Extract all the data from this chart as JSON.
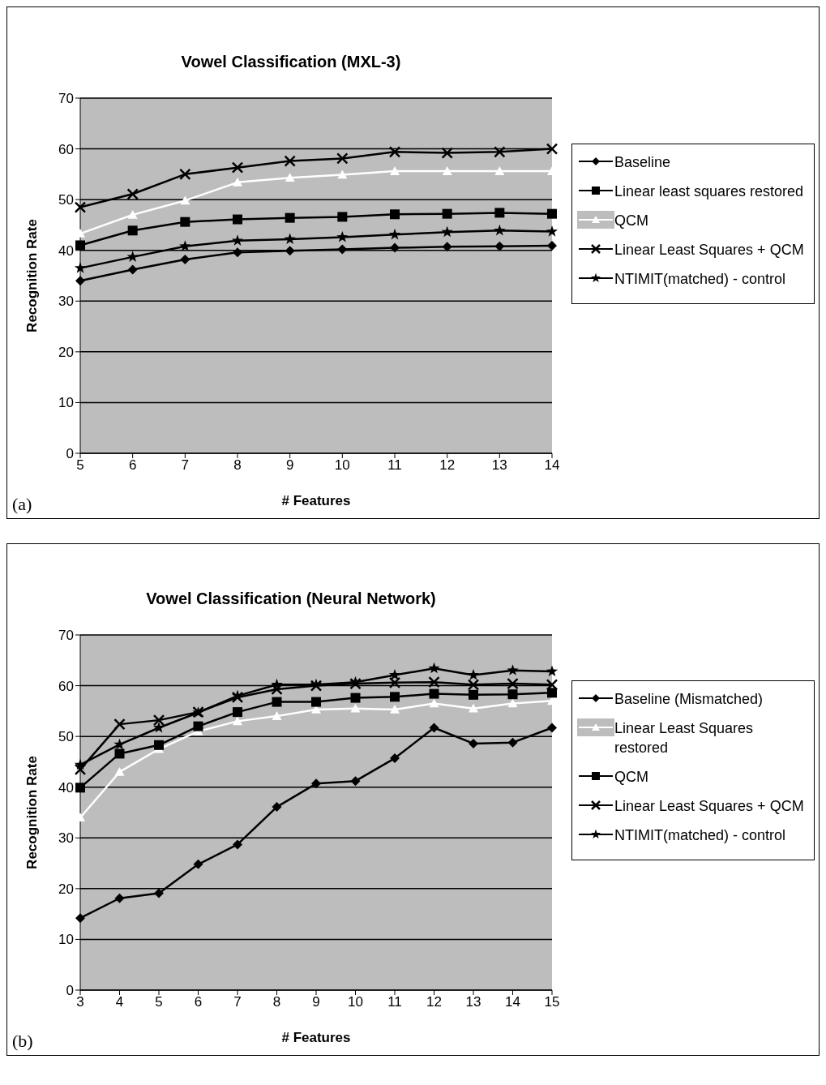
{
  "chart_data": [
    {
      "type": "line",
      "title": "Vowel Classification (MXL-3)",
      "xlabel": "# Features",
      "ylabel": "Recognition Rate",
      "categories": [
        "5",
        "6",
        "7",
        "8",
        "9",
        "10",
        "11",
        "12",
        "13",
        "14"
      ],
      "ylim": [
        0,
        70
      ],
      "yticks": [
        0,
        10,
        20,
        30,
        40,
        50,
        60,
        70
      ],
      "grid": "y",
      "legend": "right",
      "annotations": [
        "(a)"
      ],
      "series": [
        {
          "name": "Baseline",
          "color": "#000000",
          "marker": "diamond",
          "values": [
            34.0,
            36.2,
            38.2,
            39.6,
            39.9,
            40.2,
            40.5,
            40.7,
            40.8,
            40.9
          ]
        },
        {
          "name": "Linear least squares restored",
          "color": "#000000",
          "marker": "square",
          "values": [
            41.0,
            43.9,
            45.6,
            46.1,
            46.4,
            46.6,
            47.1,
            47.2,
            47.4,
            47.2
          ]
        },
        {
          "name": "QCM",
          "color": "#ffffff",
          "marker": "triangle",
          "values": [
            43.3,
            47.0,
            49.8,
            53.4,
            54.3,
            54.9,
            55.6,
            55.6,
            55.6,
            55.6
          ]
        },
        {
          "name": "Linear Least Squares + QCM",
          "color": "#000000",
          "marker": "cross",
          "values": [
            48.5,
            51.1,
            55.0,
            56.3,
            57.6,
            58.1,
            59.4,
            59.2,
            59.4,
            60.0
          ]
        },
        {
          "name": "NTIMIT(matched) - control",
          "color": "#000000",
          "marker": "star",
          "values": [
            36.5,
            38.7,
            40.8,
            41.9,
            42.2,
            42.6,
            43.1,
            43.6,
            43.9,
            43.7
          ]
        }
      ]
    },
    {
      "type": "line",
      "title": "Vowel Classification (Neural Network)",
      "xlabel": "# Features",
      "ylabel": "Recognition Rate",
      "categories": [
        "3",
        "4",
        "5",
        "6",
        "7",
        "8",
        "9",
        "10",
        "11",
        "12",
        "13",
        "14",
        "15"
      ],
      "ylim": [
        0,
        70
      ],
      "yticks": [
        0,
        10,
        20,
        30,
        40,
        50,
        60,
        70
      ],
      "grid": "y",
      "legend": "right",
      "annotations": [
        "(b)"
      ],
      "series": [
        {
          "name": "Baseline (Mismatched)",
          "color": "#000000",
          "marker": "diamond",
          "values": [
            14.2,
            18.1,
            19.1,
            24.8,
            28.7,
            36.1,
            40.7,
            41.2,
            45.7,
            51.7,
            48.6,
            48.8,
            51.7
          ]
        },
        {
          "name": "Linear Least Squares restored",
          "color": "#ffffff",
          "marker": "triangle",
          "values": [
            34,
            43,
            47.5,
            51,
            53,
            54,
            55.3,
            55.5,
            55.3,
            56.5,
            55.5,
            56.5,
            57
          ]
        },
        {
          "name": "QCM",
          "color": "#000000",
          "marker": "square",
          "values": [
            39.9,
            46.6,
            48.3,
            52.0,
            54.8,
            56.8,
            56.8,
            57.6,
            57.8,
            58.4,
            58.2,
            58.3,
            58.6
          ]
        },
        {
          "name": "Linear Least Squares + QCM",
          "color": "#000000",
          "marker": "cross",
          "values": [
            43.5,
            52.4,
            53.2,
            54.8,
            57.7,
            59.3,
            60.0,
            60.4,
            60.6,
            60.7,
            60.2,
            60.4,
            60.2
          ]
        },
        {
          "name": "NTIMIT(matched) - control",
          "color": "#000000",
          "marker": "star",
          "values": [
            44.4,
            48.4,
            51.7,
            54.7,
            58.0,
            60.2,
            60.2,
            60.7,
            62.1,
            63.4,
            62.1,
            63.0,
            62.8
          ]
        }
      ]
    }
  ]
}
